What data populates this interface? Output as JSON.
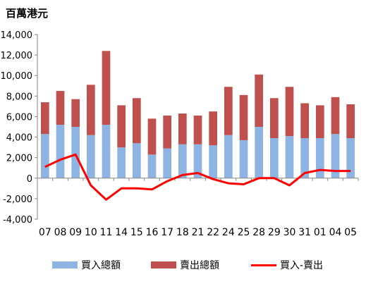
{
  "unit_label": "百萬港元",
  "colors": {
    "buy": "#8DB4E2",
    "sell": "#C0504D",
    "net": "#FF0000",
    "axis": "#868686"
  },
  "chart_data": {
    "type": "bar",
    "stacked": true,
    "categories": [
      "07",
      "08",
      "09",
      "10",
      "11",
      "14",
      "15",
      "16",
      "17",
      "18",
      "21",
      "22",
      "24",
      "25",
      "28",
      "29",
      "30",
      "31",
      "01",
      "04",
      "05"
    ],
    "series": [
      {
        "name": "買入總額",
        "kind": "bar",
        "values": [
          4300,
          5200,
          5000,
          4200,
          5200,
          3000,
          3400,
          2300,
          2900,
          3300,
          3300,
          3200,
          4200,
          3700,
          5000,
          3900,
          4100,
          3900,
          3900,
          4300,
          3900
        ]
      },
      {
        "name": "賣出總額",
        "kind": "bar",
        "values": [
          3100,
          3300,
          2700,
          4900,
          7200,
          4100,
          4400,
          3500,
          3200,
          3000,
          2800,
          3300,
          4700,
          4400,
          5100,
          3900,
          4800,
          3400,
          3200,
          3600,
          3300
        ]
      },
      {
        "name": "買入-賣出",
        "kind": "line",
        "values": [
          1100,
          1800,
          2300,
          -700,
          -2100,
          -1000,
          -1000,
          -1100,
          -300,
          300,
          500,
          -100,
          -500,
          -600,
          0,
          0,
          -700,
          500,
          800,
          700,
          700
        ]
      }
    ],
    "ylim": [
      -4000,
      14000
    ],
    "yticks": [
      "-4,000",
      "-2,000",
      "0",
      "2,000",
      "4,000",
      "6,000",
      "8,000",
      "10,000",
      "12,000",
      "14,000"
    ],
    "grid": false,
    "legend_position": "bottom"
  }
}
